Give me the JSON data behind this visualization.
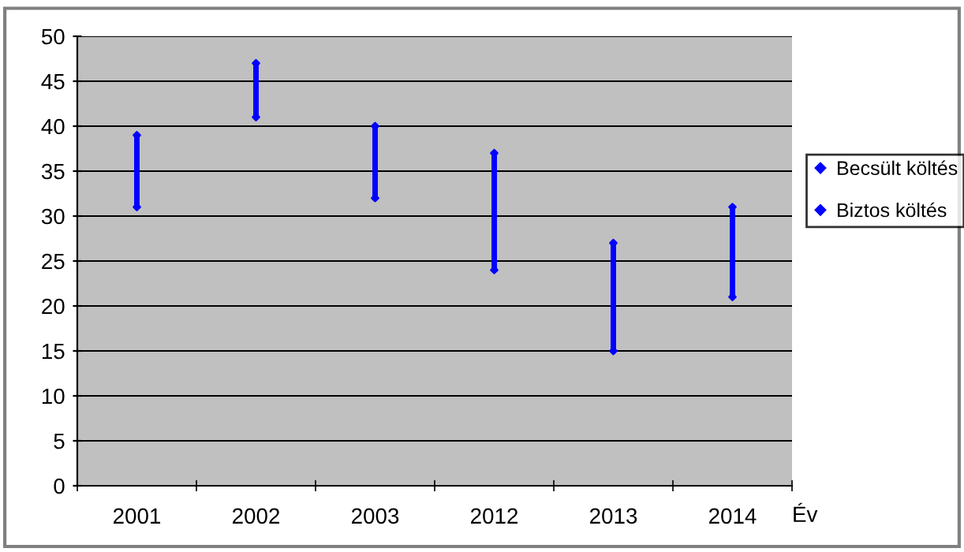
{
  "chart_data": {
    "type": "scatter",
    "xlabel": "Év",
    "categories": [
      "2001",
      "2002",
      "2003",
      "2012",
      "2013",
      "2014"
    ],
    "series": [
      {
        "name": "Becsült költés",
        "color": "#0000ff",
        "values": [
          39,
          47,
          40,
          37,
          27,
          31
        ]
      },
      {
        "name": "Biztos költés",
        "color": "#0000ff",
        "values": [
          31,
          41,
          32,
          24,
          15,
          21
        ]
      }
    ],
    "ylim": [
      0,
      50
    ],
    "yticks": [
      0,
      5,
      10,
      15,
      20,
      25,
      30,
      35,
      40,
      45,
      50
    ],
    "grid": "y",
    "legend": "right",
    "marker": "diamond"
  }
}
